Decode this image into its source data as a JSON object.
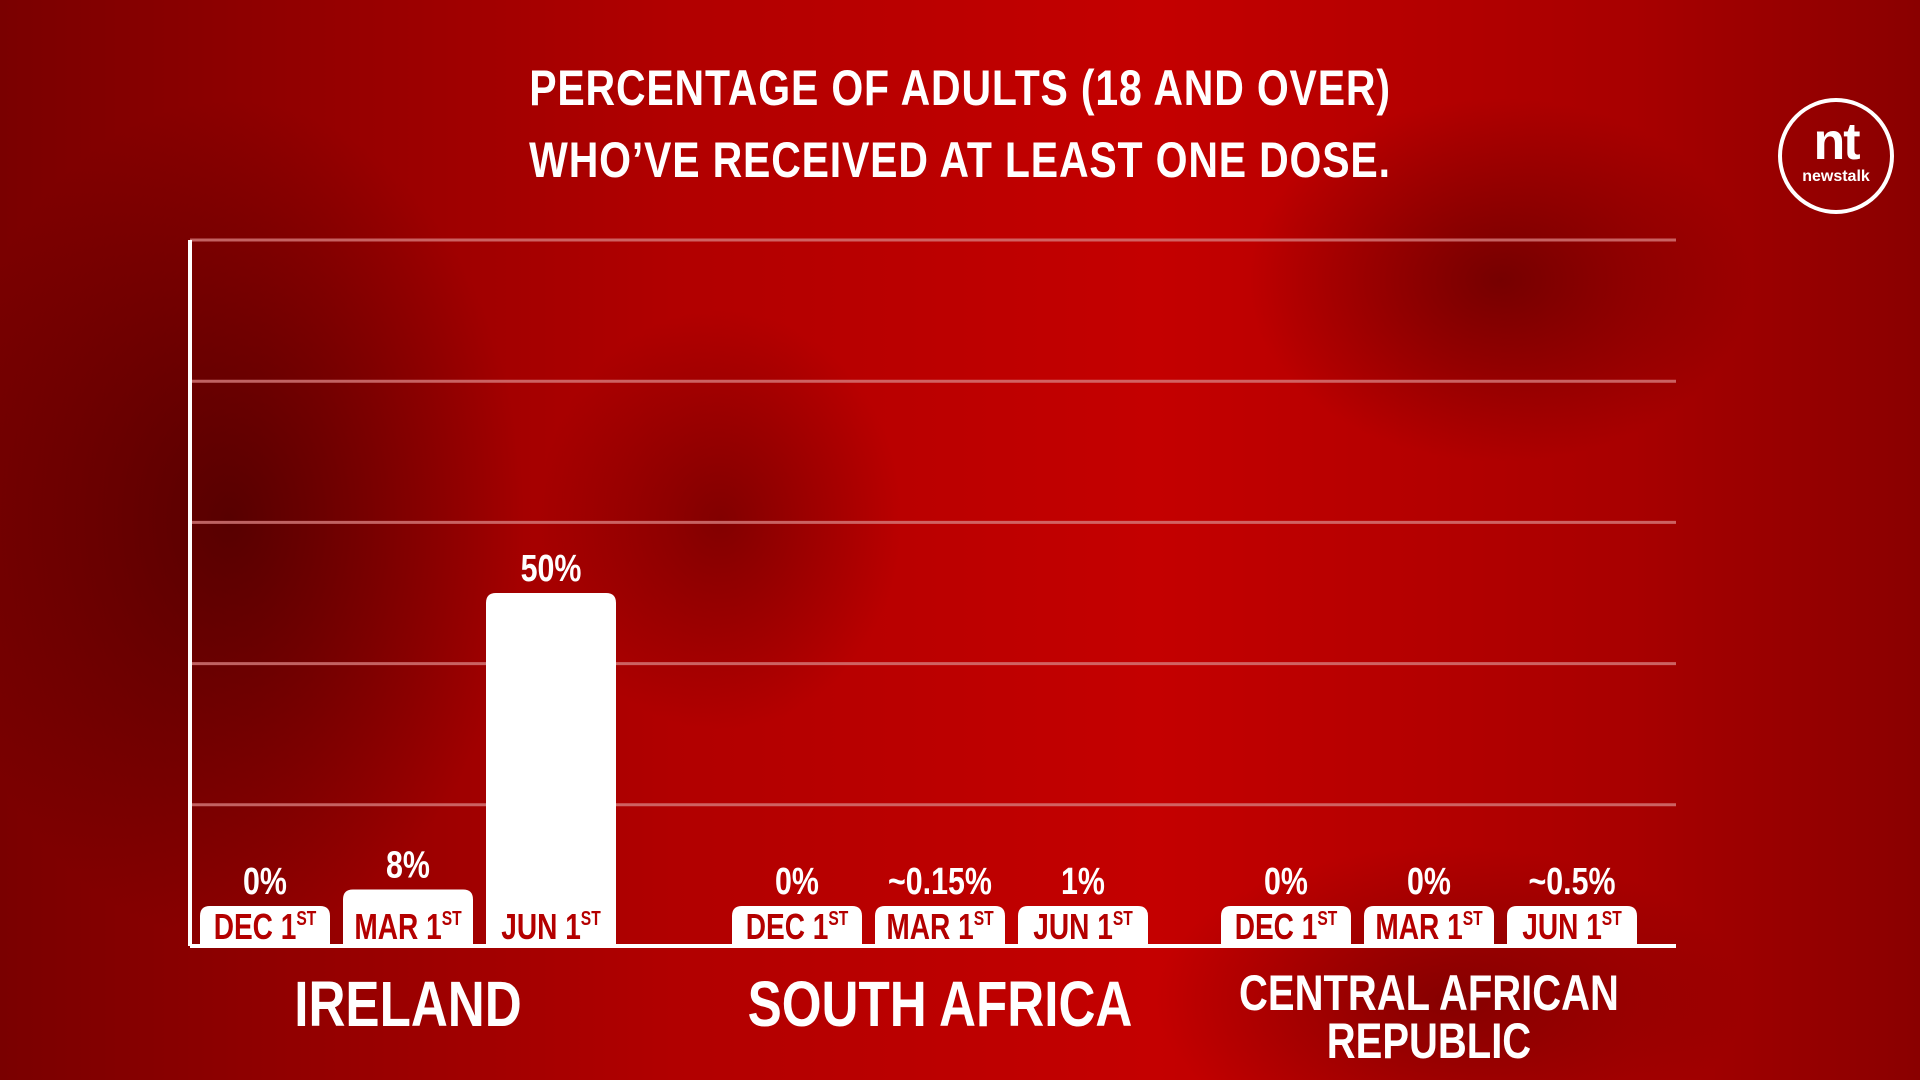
{
  "title_line1": "PERCENTAGE OF ADULTS (18 AND OVER)",
  "title_line2": "WHO’VE RECEIVED AT LEAST ONE DOSE.",
  "logo": {
    "mark": "nt",
    "wordmark": "newstalk"
  },
  "colors": {
    "background": "#b80000",
    "bars": "#ffffff",
    "category_text": "#b40000",
    "gridlines": "#d67a7a"
  },
  "chart_data": {
    "type": "bar",
    "title": "PERCENTAGE OF ADULTS (18 AND OVER) WHO’VE RECEIVED AT LEAST ONE DOSE.",
    "ylim": [
      0,
      100
    ],
    "grid": true,
    "groups": [
      {
        "name": "IRELAND",
        "bars": [
          {
            "category": "DEC 1",
            "sup": "ST",
            "value": 0,
            "label": "0%"
          },
          {
            "category": "MAR 1",
            "sup": "ST",
            "value": 8,
            "label": "8%"
          },
          {
            "category": "JUN 1",
            "sup": "ST",
            "value": 50,
            "label": "50%"
          }
        ]
      },
      {
        "name": "SOUTH AFRICA",
        "bars": [
          {
            "category": "DEC 1",
            "sup": "ST",
            "value": 0,
            "label": "0%"
          },
          {
            "category": "MAR 1",
            "sup": "ST",
            "value": 0.15,
            "label": "~0.15%"
          },
          {
            "category": "JUN 1",
            "sup": "ST",
            "value": 1,
            "label": "1%"
          }
        ]
      },
      {
        "name": "CENTRAL AFRICAN REPUBLIC",
        "name_lines": [
          "CENTRAL AFRICAN",
          "REPUBLIC"
        ],
        "bars": [
          {
            "category": "DEC 1",
            "sup": "ST",
            "value": 0,
            "label": "0%"
          },
          {
            "category": "MAR 1",
            "sup": "ST",
            "value": 0,
            "label": "0%"
          },
          {
            "category": "JUN 1",
            "sup": "ST",
            "value": 0.5,
            "label": "~0.5%"
          }
        ]
      }
    ]
  }
}
